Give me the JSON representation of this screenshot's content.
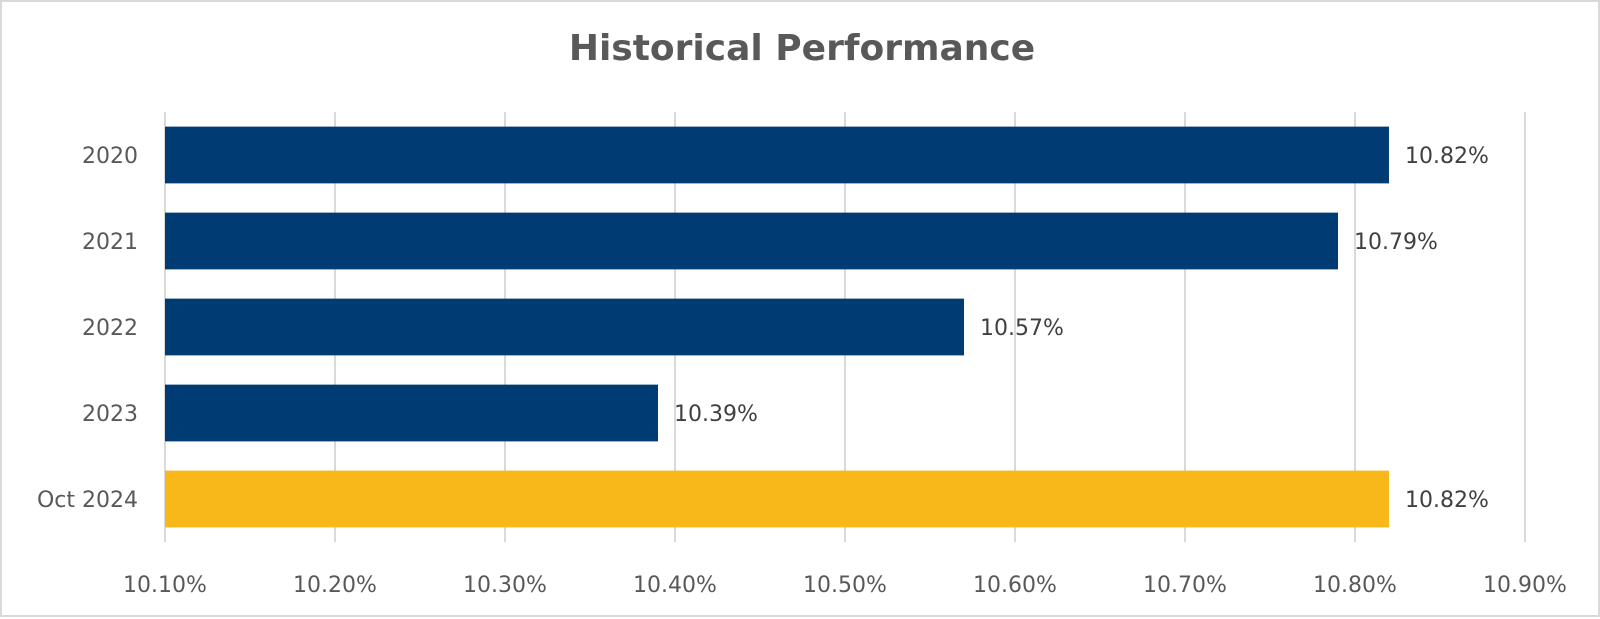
{
  "chart_data": {
    "type": "bar",
    "orientation": "horizontal",
    "title": "Historical Performance",
    "categories": [
      "2020",
      "2021",
      "2022",
      "2023",
      "Oct 2024"
    ],
    "values": [
      10.82,
      10.79,
      10.57,
      10.39,
      10.82
    ],
    "value_labels": [
      "10.82%",
      "10.79%",
      "10.57%",
      "10.39%",
      "10.82%"
    ],
    "bar_colors": [
      "#003b73",
      "#003b73",
      "#003b73",
      "#003b73",
      "#f8b819"
    ],
    "xlim": [
      10.1,
      10.9
    ],
    "x_ticks": [
      10.1,
      10.2,
      10.3,
      10.4,
      10.5,
      10.6,
      10.7,
      10.8,
      10.9
    ],
    "x_tick_labels": [
      "10.10%",
      "10.20%",
      "10.30%",
      "10.40%",
      "10.50%",
      "10.60%",
      "10.70%",
      "10.80%",
      "10.90%"
    ],
    "xlabel": "",
    "ylabel": "",
    "grid": "vertical",
    "legend": "none"
  }
}
